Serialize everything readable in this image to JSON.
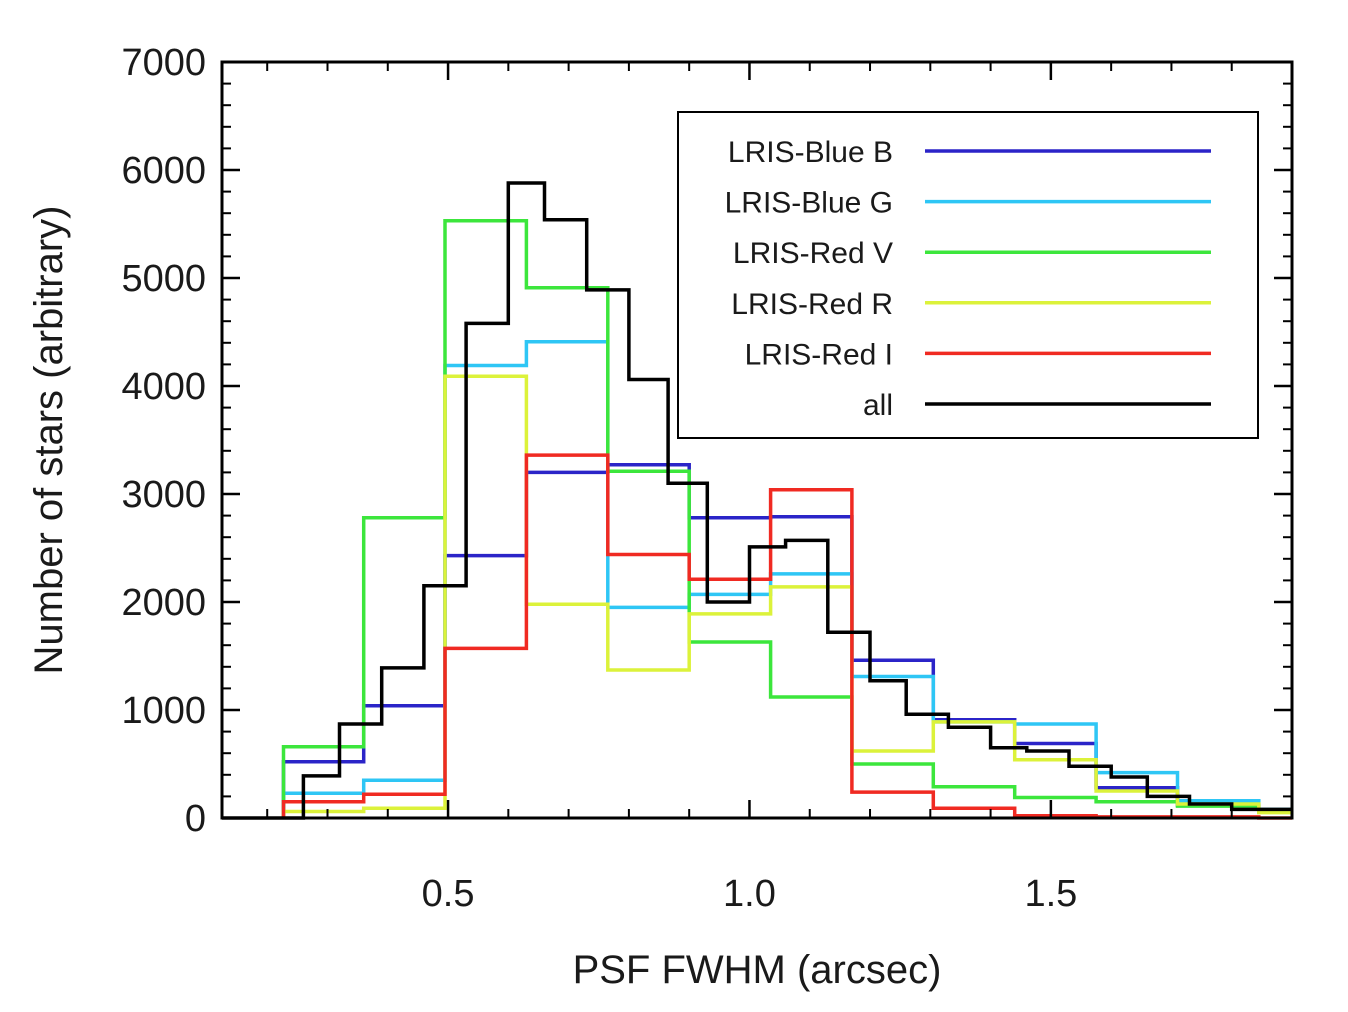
{
  "chart_data": {
    "type": "histogram",
    "title": "",
    "xlabel": "PSF FWHM (arcsec)",
    "ylabel": "Number of stars (arbitrary)",
    "xlim": [
      0.125,
      1.9
    ],
    "ylim": [
      0,
      7000
    ],
    "xticks": [
      0.5,
      1.0,
      1.5
    ],
    "xtick_labels": [
      "0.5",
      "1.0",
      "1.5"
    ],
    "yticks": [
      0,
      1000,
      2000,
      3000,
      4000,
      5000,
      6000,
      7000
    ],
    "ytick_labels": [
      "0",
      "1000",
      "2000",
      "3000",
      "4000",
      "5000",
      "6000",
      "7000"
    ],
    "legend_position": "top-right",
    "series": [
      {
        "name": "LRIS-Blue B",
        "color": "#2b24c8",
        "edges": [
          0.227,
          0.36,
          0.495,
          0.63,
          0.765,
          0.9,
          1.035,
          1.17,
          1.305,
          1.44,
          1.575,
          1.71,
          1.845,
          1.9
        ],
        "values": [
          520,
          1040,
          2430,
          3200,
          3270,
          2780,
          2790,
          1460,
          910,
          690,
          280,
          120,
          60
        ]
      },
      {
        "name": "LRIS-Blue G",
        "color": "#2ec6f5",
        "edges": [
          0.227,
          0.36,
          0.495,
          0.63,
          0.765,
          0.9,
          1.035,
          1.17,
          1.305,
          1.44,
          1.575,
          1.71,
          1.845,
          1.9
        ],
        "values": [
          230,
          350,
          4190,
          4410,
          1950,
          2070,
          2260,
          1310,
          890,
          870,
          420,
          160,
          80
        ]
      },
      {
        "name": "LRIS-Red V",
        "color": "#3ce63c",
        "edges": [
          0.227,
          0.36,
          0.495,
          0.63,
          0.765,
          0.9,
          1.035,
          1.17,
          1.305,
          1.44,
          1.575,
          1.71,
          1.845,
          1.9
        ],
        "values": [
          660,
          2780,
          5530,
          4910,
          3210,
          1630,
          1120,
          500,
          290,
          190,
          150,
          110,
          60
        ]
      },
      {
        "name": "LRIS-Red R",
        "color": "#dcf23a",
        "edges": [
          0.227,
          0.36,
          0.495,
          0.63,
          0.765,
          0.9,
          1.035,
          1.17,
          1.305,
          1.44,
          1.575,
          1.71,
          1.845,
          1.9
        ],
        "values": [
          60,
          90,
          4090,
          1980,
          1370,
          1890,
          2140,
          620,
          890,
          540,
          250,
          130,
          50
        ]
      },
      {
        "name": "LRIS-Red I",
        "color": "#f02a22",
        "edges": [
          0.227,
          0.36,
          0.495,
          0.63,
          0.765,
          0.9,
          1.035,
          1.17,
          1.305,
          1.44,
          1.575,
          1.71,
          1.845,
          1.9
        ],
        "values": [
          150,
          220,
          1570,
          3360,
          2440,
          2210,
          3040,
          240,
          90,
          20,
          10,
          10,
          0
        ]
      },
      {
        "name": "all",
        "color": "#000000",
        "edges": [
          0.26,
          0.32,
          0.39,
          0.46,
          0.53,
          0.6,
          0.66,
          0.73,
          0.8,
          0.865,
          0.93,
          1.0,
          1.06,
          1.13,
          1.2,
          1.26,
          1.33,
          1.4,
          1.46,
          1.53,
          1.6,
          1.66,
          1.73,
          1.8,
          1.9
        ],
        "values": [
          390,
          870,
          1390,
          2150,
          4580,
          5880,
          5540,
          4890,
          4060,
          3100,
          2000,
          2510,
          2570,
          1720,
          1270,
          960,
          840,
          650,
          620,
          480,
          380,
          200,
          130,
          80
        ]
      }
    ]
  }
}
